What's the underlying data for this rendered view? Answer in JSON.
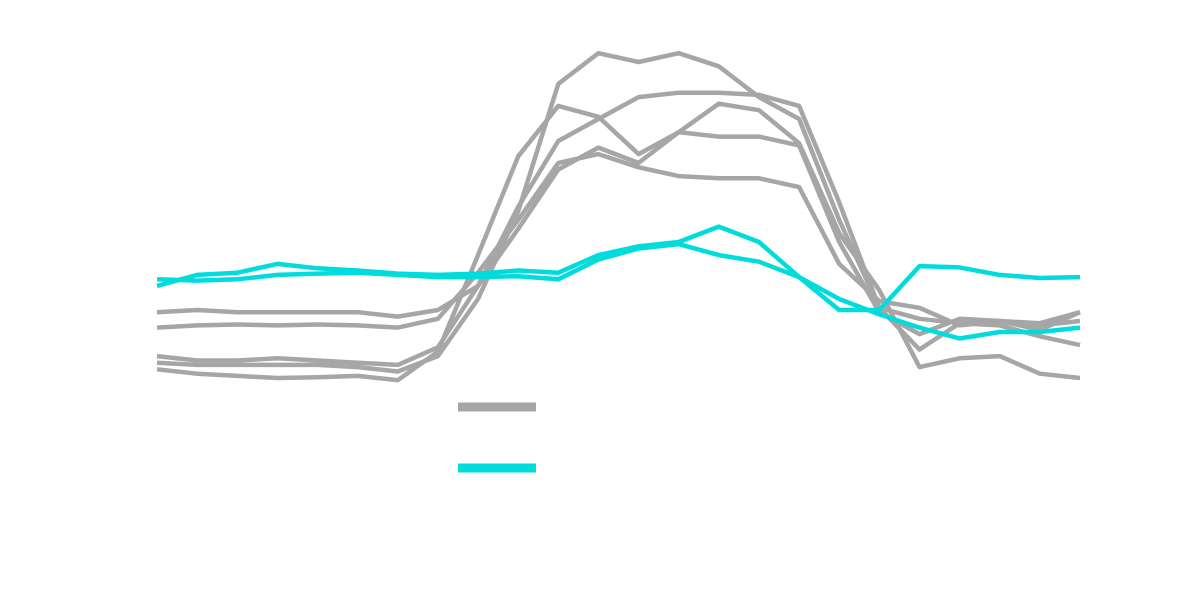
{
  "chart_data": {
    "type": "line",
    "title": "",
    "xlabel": "",
    "ylabel": "",
    "grid": false,
    "axes_visible": false,
    "legend_placement": "bottom-center",
    "x": [
      0,
      1,
      2,
      3,
      4,
      5,
      6,
      7,
      8,
      9,
      10,
      11,
      12,
      13,
      14,
      15,
      16,
      17,
      18,
      19,
      20,
      21,
      22,
      23
    ],
    "xlim": [
      0,
      23
    ],
    "ylim": [
      -2.6,
      5.6
    ],
    "series": [
      {
        "group": 0,
        "values": [
          -0.6,
          -0.55,
          -0.6,
          -0.6,
          -0.6,
          -0.6,
          -0.7,
          -0.55,
          0.0,
          1.8,
          3.3,
          3.8,
          4.3,
          4.4,
          4.4,
          4.35,
          4.1,
          1.9,
          -0.5,
          -0.75,
          -0.85,
          -0.8,
          -1.0,
          -0.6
        ]
      },
      {
        "group": 0,
        "values": [
          -0.95,
          -0.9,
          -0.88,
          -0.9,
          -0.88,
          -0.9,
          -0.95,
          -0.75,
          0.3,
          1.5,
          2.8,
          3.0,
          2.7,
          2.5,
          2.45,
          2.45,
          2.25,
          0.5,
          -0.35,
          -0.5,
          -0.9,
          -0.8,
          -0.85,
          -0.6
        ]
      },
      {
        "group": 0,
        "values": [
          -1.6,
          -1.7,
          -1.7,
          -1.65,
          -1.7,
          -1.75,
          -1.8,
          -1.4,
          0.0,
          1.3,
          2.65,
          3.15,
          2.8,
          3.5,
          3.4,
          3.4,
          3.2,
          1.0,
          -0.6,
          -1.1,
          -0.75,
          -0.8,
          -0.9,
          -0.8
        ]
      },
      {
        "group": 0,
        "values": [
          -1.75,
          -1.8,
          -1.8,
          -1.8,
          -1.8,
          -1.85,
          -1.95,
          -1.6,
          -0.3,
          1.7,
          4.6,
          5.3,
          5.1,
          5.3,
          5.0,
          4.3,
          3.8,
          1.5,
          -0.5,
          -1.45,
          -0.85,
          -0.9,
          -1.15,
          -1.35
        ]
      },
      {
        "group": 0,
        "values": [
          -1.9,
          -2.0,
          -2.05,
          -2.1,
          -2.08,
          -2.05,
          -2.15,
          -1.5,
          0.7,
          2.95,
          4.1,
          3.85,
          3.0,
          3.5,
          4.15,
          4.0,
          3.25,
          1.2,
          -0.1,
          -1.85,
          -1.65,
          -1.6,
          -2.0,
          -2.1
        ]
      },
      {
        "group": 1,
        "values": [
          0.0,
          0.25,
          0.3,
          0.5,
          0.4,
          0.35,
          0.28,
          0.25,
          0.28,
          0.35,
          0.3,
          0.7,
          0.9,
          1.0,
          1.35,
          1.0,
          0.2,
          -0.55,
          -0.55,
          0.45,
          0.42,
          0.25,
          0.18,
          0.2
        ]
      },
      {
        "group": 1,
        "values": [
          0.15,
          0.12,
          0.15,
          0.25,
          0.28,
          0.3,
          0.25,
          0.2,
          0.2,
          0.22,
          0.15,
          0.6,
          0.85,
          0.95,
          0.7,
          0.55,
          0.2,
          -0.3,
          -0.65,
          -0.95,
          -1.2,
          -1.05,
          -1.05,
          -0.95
        ]
      }
    ],
    "legend": [
      {
        "group": 0
      },
      {
        "group": 1
      }
    ],
    "colors": [
      "#a6a6a6",
      "#00dcdc"
    ]
  }
}
